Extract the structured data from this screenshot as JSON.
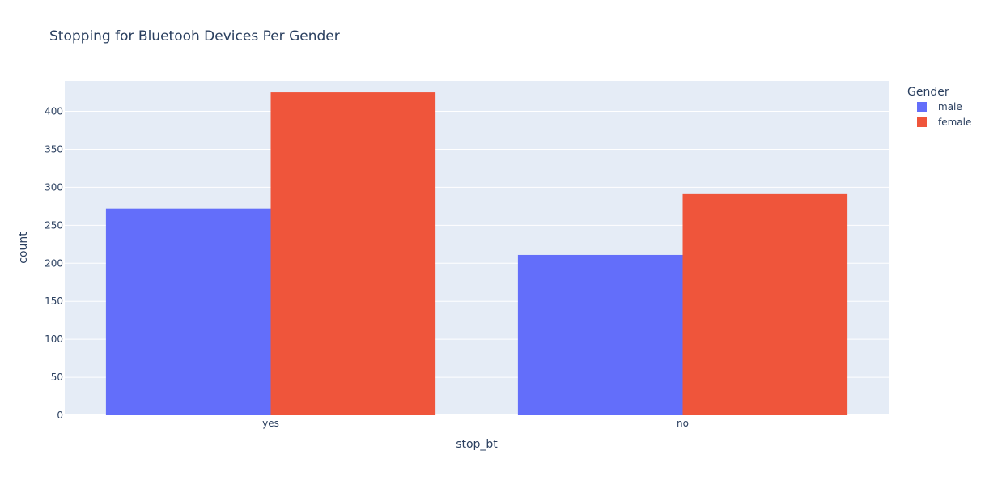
{
  "chart_data": {
    "type": "bar",
    "title": "Stopping for Bluetooh Devices Per Gender",
    "xlabel": "stop_bt",
    "ylabel": "count",
    "categories": [
      "yes",
      "no"
    ],
    "series": [
      {
        "name": "male",
        "values": [
          272,
          211
        ]
      },
      {
        "name": "female",
        "values": [
          425,
          291
        ]
      }
    ],
    "ylim": [
      0,
      440
    ],
    "yticks": [
      0,
      50,
      100,
      150,
      200,
      250,
      300,
      350,
      400
    ],
    "grid": true,
    "legend_title": "Gender",
    "legend_position": "top-right"
  },
  "colors": {
    "plot_background": "#e5ecf6",
    "text": "#2a3f5f",
    "grid": "#ffffff",
    "male": "#636efa",
    "female": "#ef553b"
  }
}
